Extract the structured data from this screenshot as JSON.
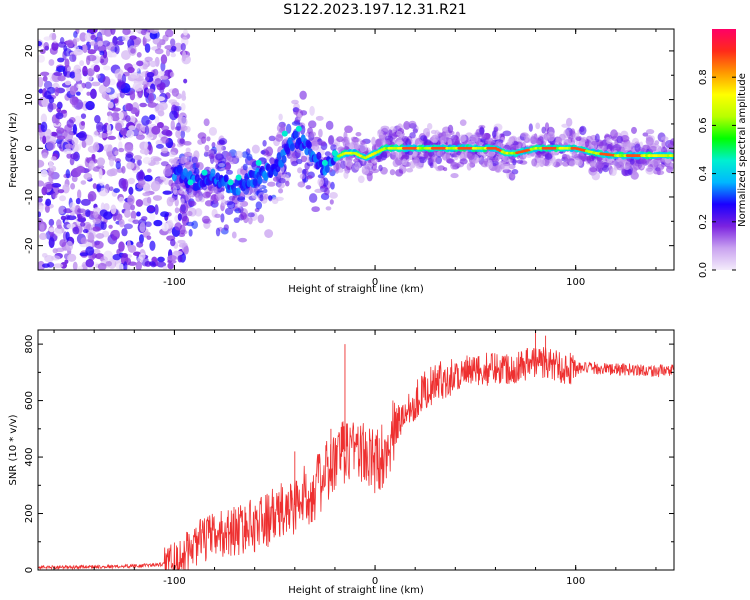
{
  "title": "S122.2023.197.12.31.R21",
  "chart_data": [
    {
      "type": "heatmap",
      "xlabel": "Height of straight line (km)",
      "ylabel": "Frequency (Hz)",
      "xlim": [
        -168,
        149
      ],
      "ylim": [
        -25,
        24.5
      ],
      "xticks": [
        -100,
        0,
        100
      ],
      "yticks": [
        -20,
        -10,
        0,
        10,
        20
      ],
      "grid": false,
      "colorbar": {
        "label": "Normalized spectral amplitude",
        "range": [
          0.0,
          1.0
        ],
        "ticks": [
          0.0,
          0.2,
          0.4,
          0.6,
          0.8
        ],
        "colors": [
          "#f4ecfb",
          "#c9a2f0",
          "#7b22e0",
          "#1a00ff",
          "#00b7ff",
          "#00f0d0",
          "#00ff00",
          "#b8ff00",
          "#ffff00",
          "#ff9900",
          "#ff2a1a",
          "#ff0066"
        ]
      },
      "ridge": {
        "x": [
          -100,
          -90,
          -80,
          -70,
          -60,
          -50,
          -45,
          -40,
          -35,
          -30,
          -25,
          -20,
          -15,
          -10,
          -5,
          0,
          5,
          10,
          20,
          30,
          40,
          50,
          60,
          65,
          70,
          80,
          90,
          100,
          110,
          120,
          130,
          140,
          149
        ],
        "y": [
          -5,
          -7,
          -6,
          -8,
          -6,
          -4,
          -1,
          2,
          1,
          -2,
          -4,
          -2,
          -1,
          -1,
          -2,
          -1,
          0,
          0,
          0,
          0,
          0,
          0,
          0,
          -1,
          -1,
          0,
          0,
          0,
          -1,
          -1.5,
          -1.5,
          -1.5,
          -1.5
        ]
      },
      "noise_region": {
        "x": [
          -168,
          -100
        ],
        "y": [
          -25,
          24.5
        ]
      }
    },
    {
      "type": "line",
      "xlabel": "Height of straight line (km)",
      "ylabel": "SNR (10 * v/v)",
      "xlim": [
        -168,
        149
      ],
      "ylim": [
        0,
        850
      ],
      "xticks": [
        -100,
        0,
        100
      ],
      "yticks": [
        0,
        200,
        400,
        600,
        800
      ],
      "grid": false,
      "line_color": "#ee3030",
      "series": [
        {
          "x": [
            -168,
            -160,
            -150,
            -140,
            -130,
            -120,
            -110,
            -105,
            -100,
            -95,
            -90,
            -85,
            -80,
            -75,
            -70,
            -65,
            -60,
            -55,
            -50,
            -45,
            -40,
            -35,
            -30,
            -25,
            -20,
            -15,
            -10,
            -5,
            0,
            5,
            10,
            15,
            20,
            25,
            30,
            35,
            40,
            45,
            50,
            55,
            60,
            65,
            70,
            75,
            80,
            85,
            90,
            95,
            100,
            110,
            120,
            130,
            140,
            149
          ],
          "y": [
            10,
            10,
            10,
            12,
            12,
            15,
            18,
            20,
            25,
            50,
            90,
            110,
            120,
            130,
            140,
            150,
            160,
            175,
            190,
            210,
            230,
            260,
            290,
            330,
            380,
            420,
            450,
            400,
            380,
            420,
            500,
            560,
            600,
            640,
            660,
            680,
            690,
            700,
            700,
            710,
            720,
            715,
            720,
            730,
            740,
            735,
            725,
            715,
            715,
            715,
            710,
            710,
            705,
            705
          ]
        }
      ],
      "spikes": [
        {
          "x": -15,
          "y": 800
        },
        {
          "x": -22,
          "y": 500
        },
        {
          "x": -40,
          "y": 420
        },
        {
          "x": 80,
          "y": 850
        },
        {
          "x": 85,
          "y": 830
        }
      ]
    }
  ]
}
